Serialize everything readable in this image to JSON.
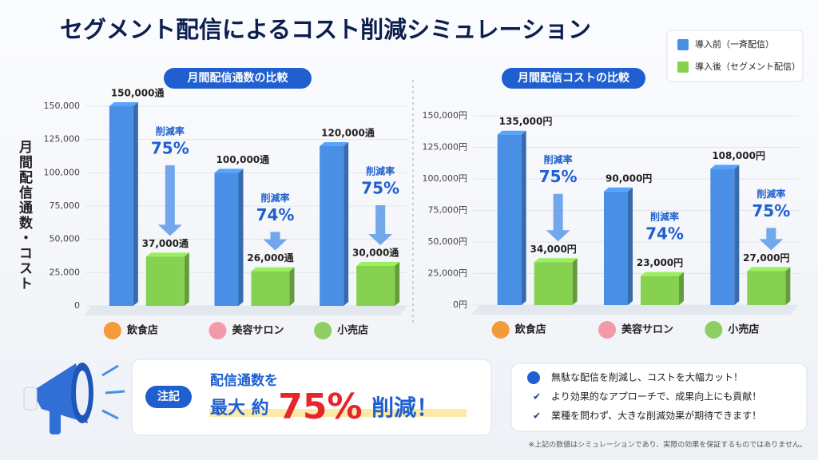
{
  "title": "セグメント配信によるコスト削減シミュレーション",
  "chart_data": [
    {
      "type": "bar",
      "title": "月間配信通数の比較",
      "ylabel": "月間配信通数・コスト",
      "categories": [
        "飲食店",
        "美容サロン",
        "小売店"
      ],
      "series": [
        {
          "name": "導入前（一斉配信）",
          "color": "#4a8fe6",
          "values": [
            150000,
            100000,
            120000
          ],
          "value_labels": [
            "150,000通",
            "100,000通",
            "120,000通"
          ]
        },
        {
          "name": "導入後（セグメント配信）",
          "color": "#86d150",
          "values": [
            37000,
            26000,
            30000
          ],
          "value_labels": [
            "37,000通",
            "26,000通",
            "30,000通"
          ]
        }
      ],
      "reduction": {
        "label": "削減率",
        "values": [
          75,
          74,
          75
        ],
        "value_labels": [
          "75%",
          "74%",
          "75%"
        ]
      },
      "ylim": [
        0,
        150000
      ],
      "yticks": [
        0,
        {
          "value": 25000,
          "label": "25,000"
        },
        {
          "value": 50000,
          "label": "50,000"
        },
        {
          "value": 75000,
          "label": "75,000"
        },
        {
          "value": 100000,
          "label": "100,000"
        },
        {
          "value": 125000,
          "label": "125,000"
        },
        {
          "value": 150000,
          "label": "150,000"
        }
      ],
      "legend": "top-right"
    },
    {
      "type": "bar",
      "title": "月間配信コストの比較",
      "categories": [
        "飲食店",
        "美容サロン",
        "小売店"
      ],
      "series": [
        {
          "color": "#4a8fe6",
          "values": [
            135000,
            90000,
            108000
          ],
          "value_labels": [
            "135,000円",
            "90,000円",
            "108,000円"
          ]
        },
        {
          "color": "#86d150",
          "values": [
            34000,
            23000,
            27000
          ],
          "value_labels": [
            "34,000円",
            "23,000円",
            "27,000円"
          ]
        }
      ],
      "reduction": {
        "label": "削減率",
        "values": [
          75,
          74,
          75
        ],
        "value_labels": [
          "75%",
          "74%",
          "75%"
        ]
      },
      "ylim": [
        0,
        150000
      ],
      "yticks": [
        {
          "value": 0,
          "label": "0円"
        },
        {
          "value": 25000,
          "label": "25,000円"
        },
        {
          "value": 50000,
          "label": "50,000円"
        },
        {
          "value": 75000,
          "label": "75,000円"
        },
        {
          "value": 100000,
          "label": "100,000円"
        },
        {
          "value": 125000,
          "label": "125,000円"
        },
        {
          "value": 150000,
          "label": "150,000円"
        }
      ]
    }
  ],
  "callout": {
    "badge": "注記",
    "line1": "配信通数を",
    "prefix": "最大 約",
    "highlight": "75%",
    "suffix": "削減！"
  },
  "checklist": [
    "無駄な配信を削減し、コストを大幅カット！",
    "より効果的なアプローチで、成果向上にも貢献！",
    "業種を問わず、大きな削減効果が期待できます！"
  ],
  "footnote": "※上記の数値はシミュレーションであり、実際の効果を保証するものではありません。"
}
